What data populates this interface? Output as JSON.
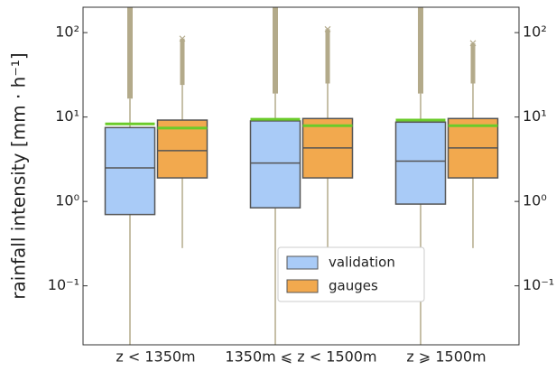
{
  "chart_data": {
    "type": "box",
    "y_label": "rainfall intensity [mm · h⁻¹]",
    "categories": [
      "z < 1350m",
      "1350m ⩽ z < 1500m",
      "z ⩾ 1500m"
    ],
    "yscale": "log",
    "ylim": [
      0.02,
      200
    ],
    "yticks": [
      {
        "value": 0.1,
        "label": "10⁻¹"
      },
      {
        "value": 1,
        "label": "10⁰"
      },
      {
        "value": 10,
        "label": "10¹"
      },
      {
        "value": 100,
        "label": "10²"
      }
    ],
    "y2ticks": [
      {
        "value": 0.1,
        "label": "10⁻¹"
      },
      {
        "value": 1,
        "label": "10⁰"
      },
      {
        "value": 10,
        "label": "10¹"
      },
      {
        "value": 100,
        "label": "10²"
      }
    ],
    "legend": "lower center",
    "whisker_color": "#b3aa8a",
    "median_color": "#555555",
    "mean_color": "#6acb2a",
    "series": [
      {
        "name": "validation",
        "color": "#a9cbf7",
        "whislo": [
          0.01,
          0.01,
          0.01
        ],
        "q1": [
          0.7,
          0.84,
          0.93
        ],
        "median": [
          2.5,
          2.85,
          3.0
        ],
        "q3": [
          7.5,
          9.0,
          8.7
        ],
        "whishi": [
          16.5,
          19,
          19
        ],
        "mean": [
          8.3,
          9.4,
          9.2
        ],
        "flier_max": [
          300,
          300,
          300
        ]
      },
      {
        "name": "gauges",
        "color": "#f2a94e",
        "whislo": [
          0.28,
          0.28,
          0.28
        ],
        "q1": [
          1.9,
          1.9,
          1.9
        ],
        "median": [
          4.0,
          4.3,
          4.3
        ],
        "q3": [
          9.2,
          9.6,
          9.6
        ],
        "whishi": [
          24,
          25,
          25
        ],
        "mean": [
          7.4,
          7.9,
          7.9
        ],
        "flier_max": [
          85,
          110,
          75
        ]
      }
    ]
  }
}
